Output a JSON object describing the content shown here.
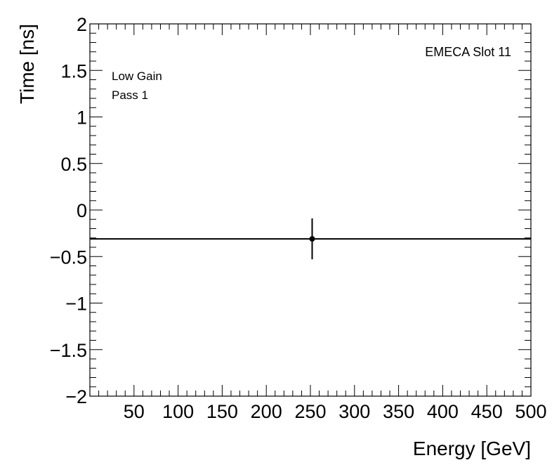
{
  "chart_data": {
    "type": "scatter",
    "xlabel": "Energy [GeV]",
    "ylabel": "Time [ns]",
    "xlim": [
      0,
      500
    ],
    "ylim": [
      -2,
      2
    ],
    "x_ticks": [
      50,
      100,
      150,
      200,
      250,
      300,
      350,
      400,
      450,
      500
    ],
    "x_tick_labels": [
      "50",
      "100",
      "150",
      "200",
      "250",
      "300",
      "350",
      "400",
      "450",
      "500"
    ],
    "y_ticks": [
      -2,
      -1.5,
      -1,
      -0.5,
      0,
      0.5,
      1,
      1.5,
      2
    ],
    "y_tick_labels": [
      "−2",
      "−1.5",
      "−1",
      "−0.5",
      "0",
      "0.5",
      "1",
      "1.5",
      "2"
    ],
    "grid": false,
    "annotations": {
      "gain": "Low Gain",
      "pass": "Pass 1",
      "slot": "EMECA Slot 11"
    },
    "series": [
      {
        "points": [
          {
            "x": 252,
            "y": -0.31,
            "y_err": 0.22
          }
        ]
      }
    ],
    "fit_line": {
      "y": -0.31
    },
    "colors": {
      "marker": "#000000",
      "line": "#000000",
      "axes": "#000000"
    }
  }
}
